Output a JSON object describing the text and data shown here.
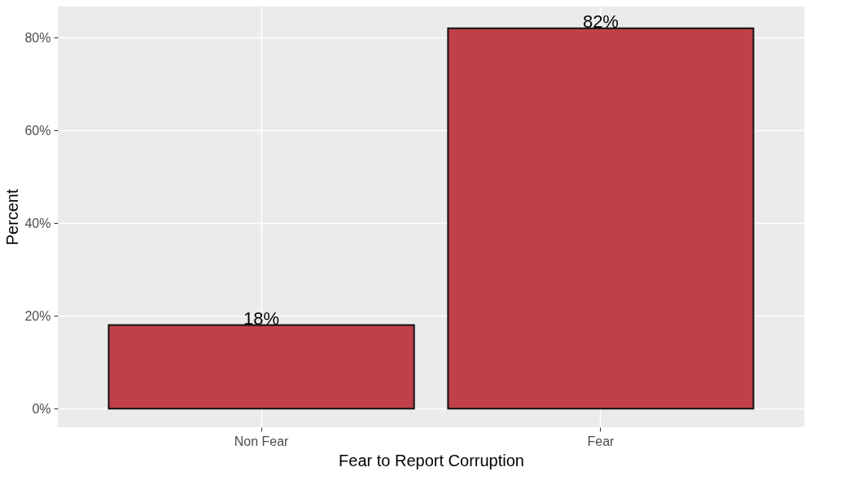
{
  "chart_data": {
    "type": "bar",
    "xlabel": "Fear to Report Corruption",
    "ylabel": "Percent",
    "categories": [
      "Non Fear",
      "Fear"
    ],
    "values": [
      18,
      82
    ],
    "value_labels": [
      "18%",
      "82%"
    ],
    "color": "#c0404a",
    "ylim": [
      -4,
      86.7
    ],
    "yticks": [
      {
        "value": 0,
        "label": "0%"
      },
      {
        "value": 20,
        "label": "20%"
      },
      {
        "value": 40,
        "label": "40%"
      },
      {
        "value": 60,
        "label": "60%"
      },
      {
        "value": 80,
        "label": "80%"
      }
    ],
    "grid": true
  }
}
